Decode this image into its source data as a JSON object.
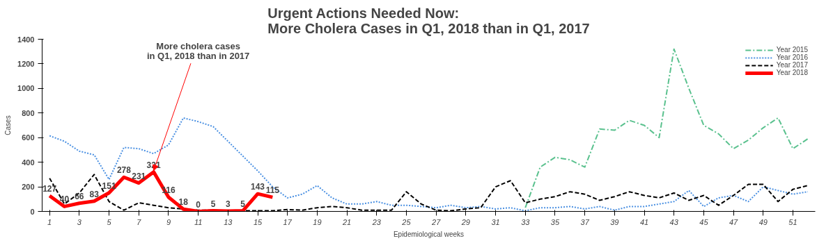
{
  "chart_data": {
    "type": "line",
    "title": "Urgent Actions Needed Now:\nMore Cholera Cases in Q1, 2018 than in Q1, 2017",
    "xlabel": "Epidemiological weeks",
    "ylabel": "Cases",
    "xlim": [
      0.5,
      52.5
    ],
    "xticks": [
      1,
      3,
      5,
      7,
      9,
      11,
      13,
      15,
      17,
      19,
      21,
      23,
      25,
      27,
      29,
      31,
      33,
      35,
      37,
      39,
      41,
      43,
      45,
      47,
      49,
      51
    ],
    "ylim": [
      0,
      1400
    ],
    "yticks": [
      0,
      200,
      400,
      600,
      800,
      1000,
      1200,
      1400
    ],
    "grid": false,
    "legend": "top right",
    "annotations": [
      {
        "text": "More cholera cases\nin Q1, 2018 than in 2017",
        "x": 8,
        "y": 321
      }
    ],
    "series": [
      {
        "name": "Year 2015",
        "color": "#5ac18e",
        "line_style": "dashdot",
        "x": [
          33,
          34,
          35,
          36,
          37,
          38,
          39,
          40,
          41,
          42,
          43,
          44,
          45,
          46,
          47,
          48,
          49,
          50,
          51,
          52
        ],
        "values": [
          30,
          360,
          440,
          420,
          360,
          670,
          660,
          740,
          700,
          600,
          1320,
          1000,
          700,
          630,
          510,
          580,
          680,
          760,
          510,
          590
        ]
      },
      {
        "name": "Year 2016",
        "color": "#4a90e2",
        "line_style": "dotted",
        "x": [
          1,
          2,
          3,
          4,
          5,
          6,
          7,
          8,
          9,
          10,
          11,
          12,
          13,
          14,
          15,
          16,
          17,
          18,
          19,
          20,
          21,
          22,
          23,
          24,
          25,
          26,
          27,
          28,
          29,
          30,
          31,
          32,
          33,
          34,
          35,
          36,
          37,
          38,
          39,
          40,
          41,
          42,
          43,
          44,
          45,
          46,
          47,
          48,
          49,
          50,
          51,
          52
        ],
        "values": [
          615,
          570,
          490,
          460,
          260,
          520,
          510,
          470,
          540,
          760,
          730,
          690,
          570,
          450,
          330,
          200,
          110,
          140,
          210,
          110,
          60,
          60,
          80,
          50,
          50,
          40,
          30,
          50,
          30,
          40,
          20,
          30,
          5,
          30,
          30,
          40,
          20,
          40,
          10,
          40,
          40,
          60,
          80,
          170,
          40,
          110,
          130,
          80,
          200,
          170,
          140,
          160
        ]
      },
      {
        "name": "Year 2017",
        "color": "#000000",
        "line_style": "dashed",
        "x": [
          1,
          2,
          3,
          4,
          5,
          6,
          7,
          8,
          9,
          10,
          11,
          12,
          13,
          14,
          15,
          16,
          17,
          18,
          19,
          20,
          21,
          22,
          23,
          24,
          25,
          26,
          27,
          28,
          29,
          30,
          31,
          32,
          33,
          34,
          35,
          36,
          37,
          38,
          39,
          40,
          41,
          42,
          43,
          44,
          45,
          46,
          47,
          48,
          49,
          50,
          51,
          52
        ],
        "values": [
          270,
          60,
          150,
          300,
          80,
          10,
          70,
          50,
          30,
          20,
          10,
          10,
          5,
          5,
          5,
          5,
          15,
          10,
          30,
          40,
          30,
          10,
          10,
          10,
          160,
          60,
          10,
          5,
          20,
          30,
          200,
          250,
          70,
          100,
          120,
          160,
          140,
          90,
          120,
          160,
          130,
          110,
          150,
          90,
          130,
          50,
          130,
          220,
          220,
          80,
          180,
          210
        ]
      },
      {
        "name": "Year 2018",
        "color": "#ff0000",
        "line_style": "solid",
        "x": [
          1,
          2,
          3,
          4,
          5,
          6,
          7,
          8,
          9,
          10,
          11,
          12,
          13,
          14,
          15,
          16
        ],
        "values": [
          127,
          40,
          66,
          83,
          151,
          278,
          231,
          321,
          116,
          18,
          0,
          5,
          3,
          5,
          143,
          115
        ],
        "value_labels": [
          "127",
          "40",
          "66",
          "83",
          "151",
          "278",
          "231",
          "321",
          "116",
          "18",
          "0",
          "5",
          "3",
          "5",
          "143",
          "115"
        ]
      }
    ]
  }
}
